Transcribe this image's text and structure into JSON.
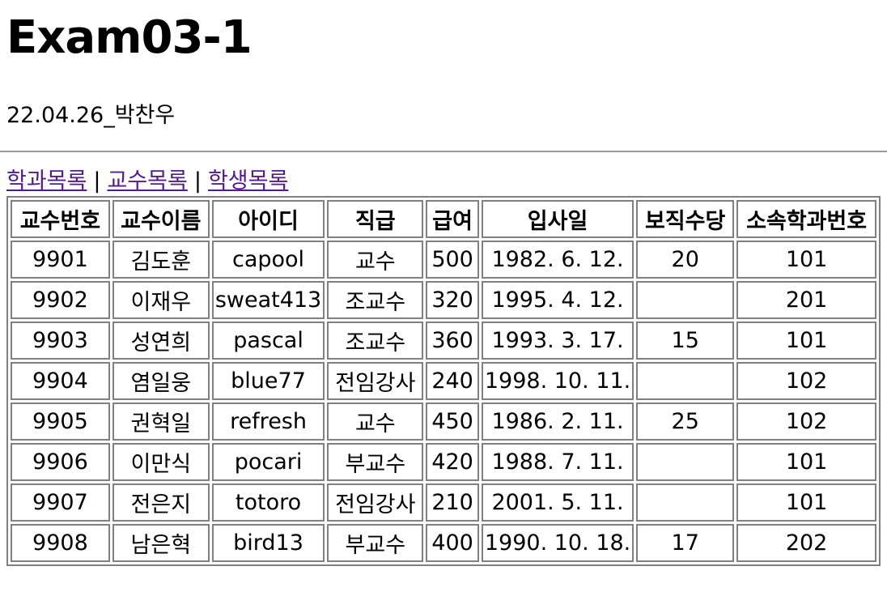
{
  "page": {
    "title": "Exam03-1",
    "author_line": "22.04.26_박찬우"
  },
  "nav": {
    "links": [
      "학과목록",
      "교수목록",
      "학생목록"
    ],
    "separator": "|"
  },
  "table": {
    "headers": [
      "교수번호",
      "교수이름",
      "아이디",
      "직급",
      "급여",
      "입사일",
      "보직수당",
      "소속학과번호"
    ],
    "rows": [
      [
        "9901",
        "김도훈",
        "capool",
        "교수",
        "500",
        "1982. 6. 12.",
        "20",
        "101"
      ],
      [
        "9902",
        "이재우",
        "sweat413",
        "조교수",
        "320",
        "1995. 4. 12.",
        "",
        "201"
      ],
      [
        "9903",
        "성연희",
        "pascal",
        "조교수",
        "360",
        "1993. 3. 17.",
        "15",
        "101"
      ],
      [
        "9904",
        "염일웅",
        "blue77",
        "전임강사",
        "240",
        "1998. 10. 11.",
        "",
        "102"
      ],
      [
        "9905",
        "권혁일",
        "refresh",
        "교수",
        "450",
        "1986. 2. 11.",
        "25",
        "102"
      ],
      [
        "9906",
        "이만식",
        "pocari",
        "부교수",
        "420",
        "1988. 7. 11.",
        "",
        "101"
      ],
      [
        "9907",
        "전은지",
        "totoro",
        "전임강사",
        "210",
        "2001. 5. 11.",
        "",
        "101"
      ],
      [
        "9908",
        "남은혁",
        "bird13",
        "부교수",
        "400",
        "1990. 10. 18.",
        "17",
        "202"
      ]
    ]
  },
  "colors": {
    "link": "#551a8b",
    "border": "#808080"
  }
}
